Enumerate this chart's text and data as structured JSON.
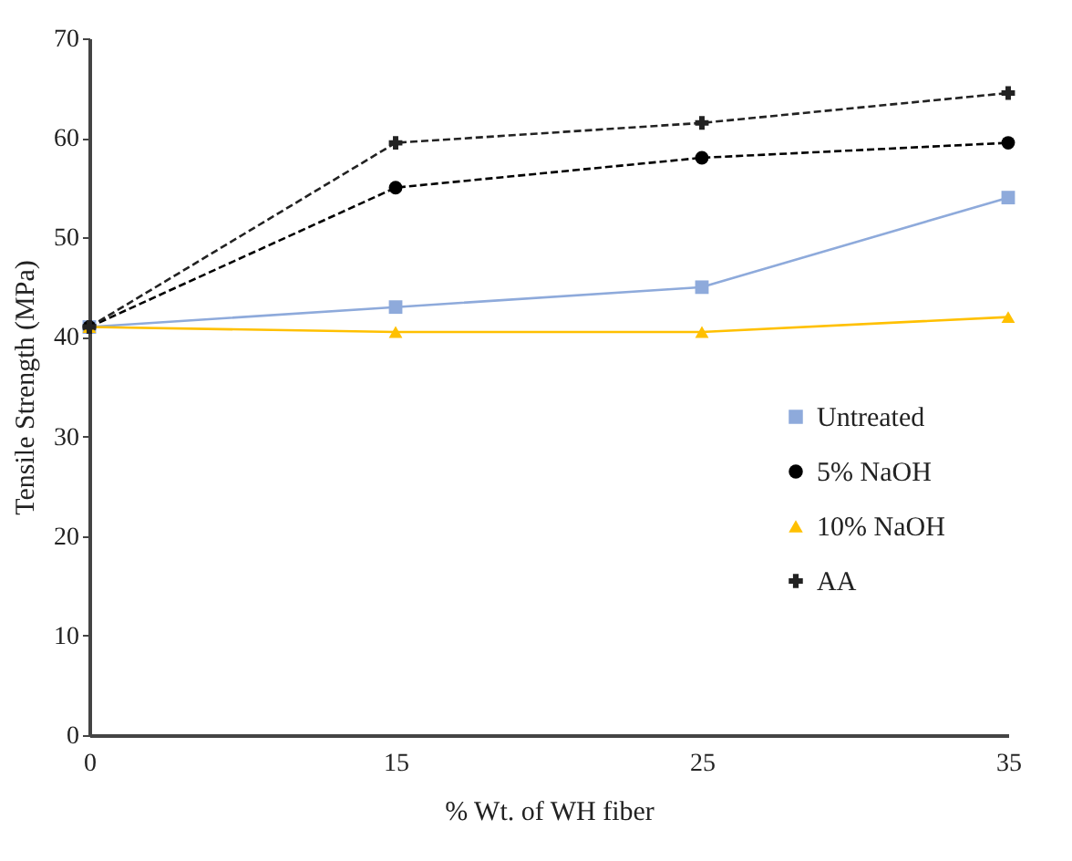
{
  "chart_data": {
    "type": "line",
    "xlabel": "% Wt. of WH fiber",
    "ylabel": "Tensile Strength (MPa)",
    "categories": [
      "0",
      "15",
      "25",
      "35"
    ],
    "series": [
      {
        "name": "Untreated",
        "color": "#8eaadb",
        "marker": "square",
        "line_style": "solid",
        "values": [
          41,
          43,
          45,
          54
        ]
      },
      {
        "name": "5% NaOH",
        "color": "#000000",
        "marker": "circle",
        "line_style": "dashed",
        "values": [
          41,
          55,
          58,
          59.5
        ]
      },
      {
        "name": "10% NaOH",
        "color": "#ffc000",
        "marker": "triangle",
        "line_style": "solid",
        "values": [
          41,
          40.5,
          40.5,
          42
        ]
      },
      {
        "name": "AA",
        "color": "#222222",
        "marker": "cross",
        "line_style": "dashed",
        "values": [
          41,
          59.5,
          61.5,
          64.5
        ]
      }
    ],
    "ylim": [
      0,
      70
    ],
    "yticks": [
      0,
      10,
      20,
      30,
      40,
      50,
      60,
      70
    ],
    "grid": false,
    "legend": "right"
  }
}
